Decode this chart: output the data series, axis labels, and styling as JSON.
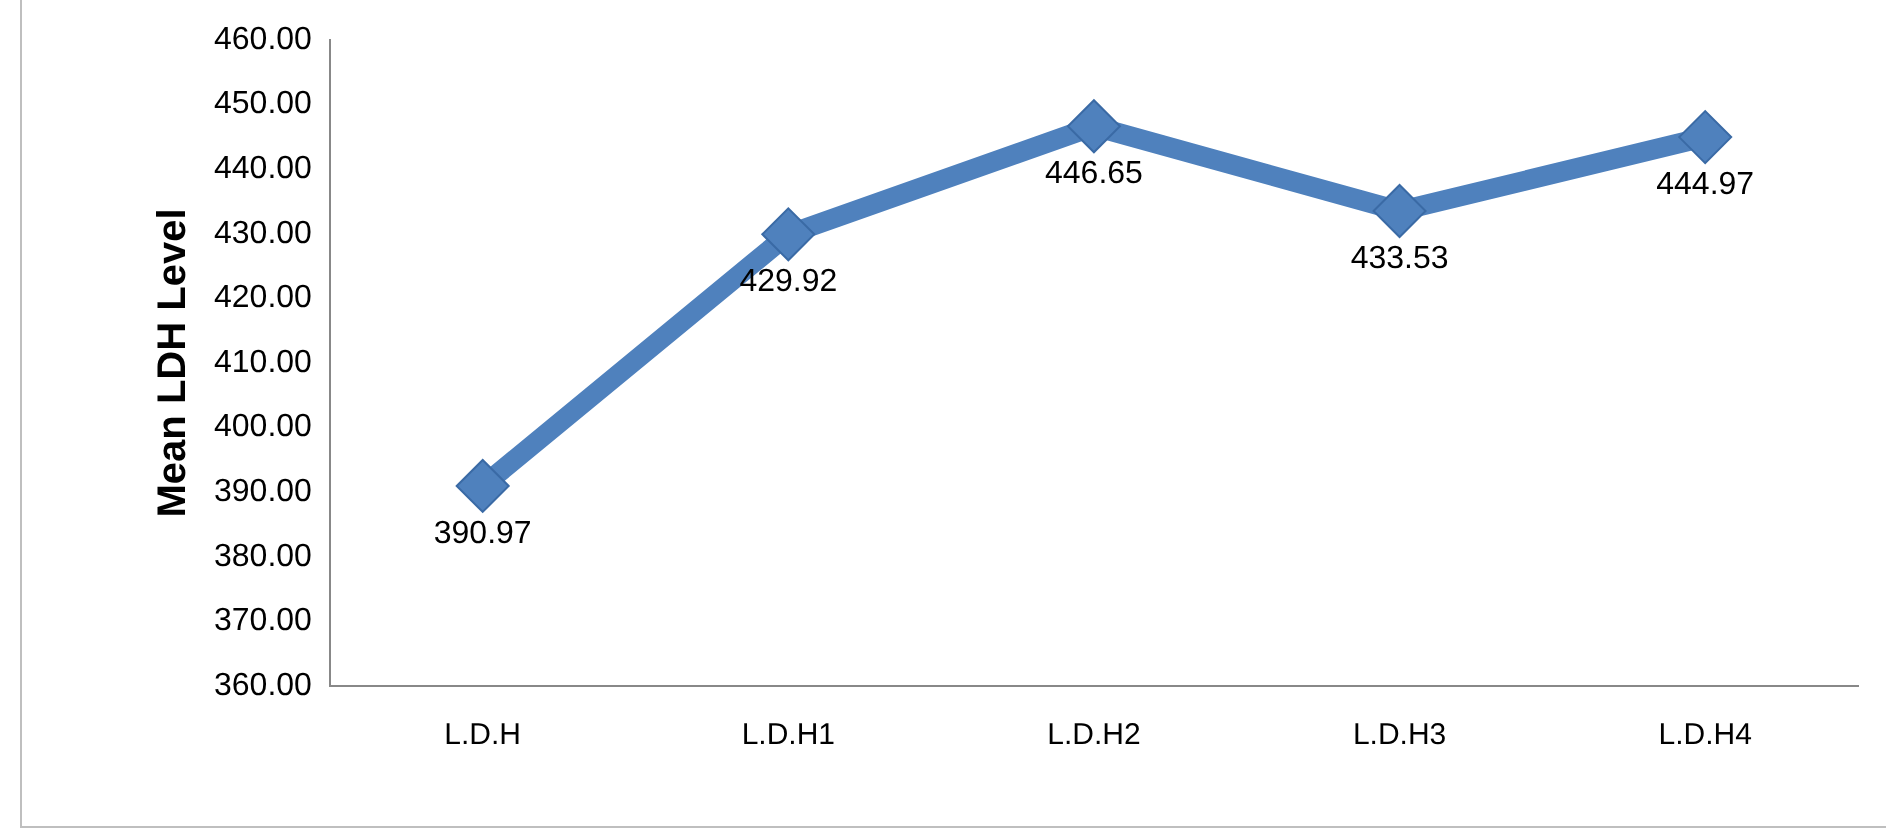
{
  "chart_data": {
    "type": "line",
    "ylabel": "Mean LDH Level",
    "categories": [
      "L.D.H",
      "L.D.H1",
      "L.D.H2",
      "L.D.H3",
      "L.D.H4"
    ],
    "series": [
      {
        "color": "#4f81bd",
        "values": [
          390.97,
          429.92,
          446.65,
          433.53,
          444.97
        ]
      }
    ],
    "ylim": [
      360,
      460
    ],
    "yticks": [
      {
        "value": 360,
        "label": "360.00"
      },
      {
        "value": 370,
        "label": "370.00"
      },
      {
        "value": 380,
        "label": "380.00"
      },
      {
        "value": 390,
        "label": "390.00"
      },
      {
        "value": 400,
        "label": "400.00"
      },
      {
        "value": 410,
        "label": "410.00"
      },
      {
        "value": 420,
        "label": "420.00"
      },
      {
        "value": 430,
        "label": "430.00"
      },
      {
        "value": 440,
        "label": "440.00"
      },
      {
        "value": 450,
        "label": "450.00"
      },
      {
        "value": 460,
        "label": "460.00"
      }
    ],
    "grid": false,
    "legend": false,
    "marker": "diamond",
    "line_style": "solid",
    "data_labels": true
  }
}
